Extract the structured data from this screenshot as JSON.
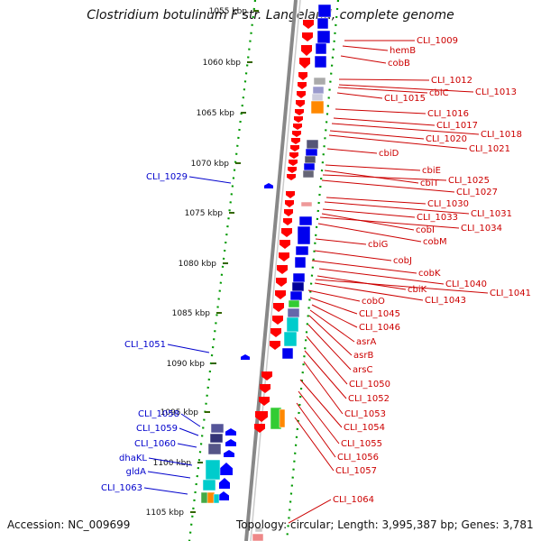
{
  "title": "Clostridium botulinum F str. Langeland, complete genome",
  "footer": {
    "accession_label": "Accession:",
    "accession": "NC_009699",
    "topology_label": "Topology:",
    "topology": "circular",
    "length_label": "Length:",
    "length": "3,995,387 bp",
    "genes_label": "Genes:",
    "genes": "3,781"
  },
  "ruler_ticks": [
    "1055 kbp",
    "1060 kbp",
    "1065 kbp",
    "1070 kbp",
    "1075 kbp",
    "1080 kbp",
    "1085 kbp",
    "1090 kbp",
    "1095 kbp",
    "1100 kbp",
    "1105 kbp"
  ],
  "colors": {
    "forward_gene": "#ff0000",
    "reverse_gene": "#0000ff",
    "backbone": "#999999",
    "ruler": "#009900",
    "tick": "#336600",
    "label_right": "#cc0000",
    "label_left": "#0000cc",
    "feature_blue": "#0000ee",
    "feature_cyan": "#00cccc",
    "feature_orange": "#ff8800",
    "feature_green": "#33cc33",
    "feature_navy": "#333399"
  },
  "right_labels": [
    "CLI_1009",
    "hemB",
    "cobB",
    "CLI_1012",
    "cbiC",
    "CLI_1013",
    "CLI_1015",
    "CLI_1016",
    "CLI_1017",
    "CLI_1018",
    "CLI_1020",
    "CLI_1021",
    "cbiD",
    "cbiE",
    "cbiT",
    "CLI_1025",
    "CLI_1027",
    "CLI_1030",
    "CLI_1031",
    "CLI_1033",
    "cobI",
    "CLI_1034",
    "cobM",
    "cbiG",
    "cobJ",
    "cobK",
    "CLI_1040",
    "cbiK",
    "CLI_1041",
    "CLI_1043",
    "cobO",
    "CLI_1045",
    "CLI_1046",
    "asrA",
    "asrB",
    "arsC",
    "CLI_1050",
    "CLI_1052",
    "CLI_1053",
    "CLI_1054",
    "CLI_1055",
    "CLI_1056",
    "CLI_1057",
    "CLI_1064"
  ],
  "left_labels": [
    "CLI_1029",
    "CLI_1051",
    "CLI_1058",
    "CLI_1059",
    "CLI_1060",
    "dhaKL",
    "gldA",
    "CLI_1063"
  ]
}
